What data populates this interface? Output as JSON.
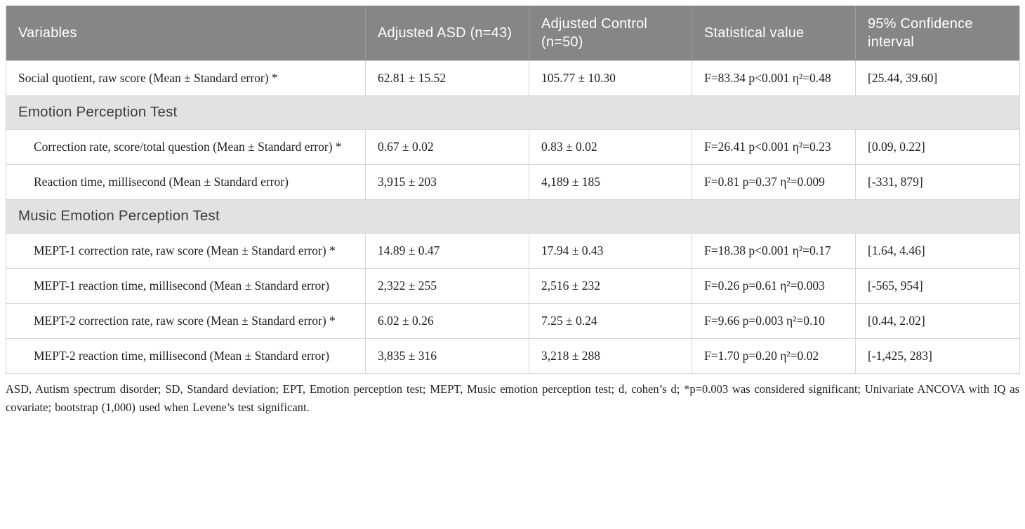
{
  "table": {
    "header": {
      "columns": [
        "Variables",
        "Adjusted ASD (n=43)",
        "Adjusted Control (n=50)",
        "Statistical value",
        "95% Confidence interval"
      ]
    },
    "sections": [
      {
        "label": "Emotion Perception Test"
      },
      {
        "label": "Music Emotion Perception Test"
      }
    ],
    "rows": [
      {
        "variable": "Social quotient, raw score (Mean ± Standard error) *",
        "asd": "62.81 ± 15.52",
        "control": "105.77 ± 10.30",
        "stat": "F=83.34 p<0.001 η²=0.48",
        "ci": "[25.44, 39.60]"
      },
      {
        "variable": "Correction rate, score/total question (Mean ± Standard error) *",
        "asd": "0.67 ± 0.02",
        "control": "0.83 ± 0.02",
        "stat": "F=26.41 p<0.001 η²=0.23",
        "ci": "[0.09, 0.22]"
      },
      {
        "variable": "Reaction time, millisecond (Mean ± Standard error)",
        "asd": "3,915 ± 203",
        "control": "4,189 ± 185",
        "stat": "F=0.81 p=0.37 η²=0.009",
        "ci": "[-331, 879]"
      },
      {
        "variable": "MEPT-1 correction rate, raw score (Mean ± Standard error) *",
        "asd": "14.89 ± 0.47",
        "control": "17.94 ± 0.43",
        "stat": "F=18.38 p<0.001 η²=0.17",
        "ci": "[1.64, 4.46]"
      },
      {
        "variable": "MEPT-1 reaction time, millisecond (Mean ± Standard error)",
        "asd": "2,322 ± 255",
        "control": "2,516 ± 232",
        "stat": "F=0.26 p=0.61 η²=0.003",
        "ci": "[-565, 954]"
      },
      {
        "variable": "MEPT-2 correction rate, raw score (Mean ± Standard error) *",
        "asd": "6.02 ± 0.26",
        "control": "7.25 ± 0.24",
        "stat": "F=9.66 p=0.003 η²=0.10",
        "ci": "[0.44, 2.02]"
      },
      {
        "variable": "MEPT-2 reaction time, millisecond (Mean ± Standard error)",
        "asd": "3,835 ± 316",
        "control": "3,218 ± 288",
        "stat": "F=1.70 p=0.20 η²=0.02",
        "ci": "[-1,425, 283]"
      }
    ]
  },
  "footnote": {
    "text": "ASD, Autism spectrum disorder; SD, Standard deviation; EPT, Emotion perception test; MEPT, Music emotion perception test; d, cohen’s d; *p=0.003 was considered significant; Univariate ANCOVA with IQ as covariate; bootstrap (1,000) used when Levene’s test significant."
  },
  "colors": {
    "header_bg": "#868686",
    "header_text": "#ffffff",
    "section_bg": "#e2e2e2",
    "section_text": "#3c3c3c",
    "body_text": "#1f1f1f",
    "border": "#d5d5d5"
  }
}
